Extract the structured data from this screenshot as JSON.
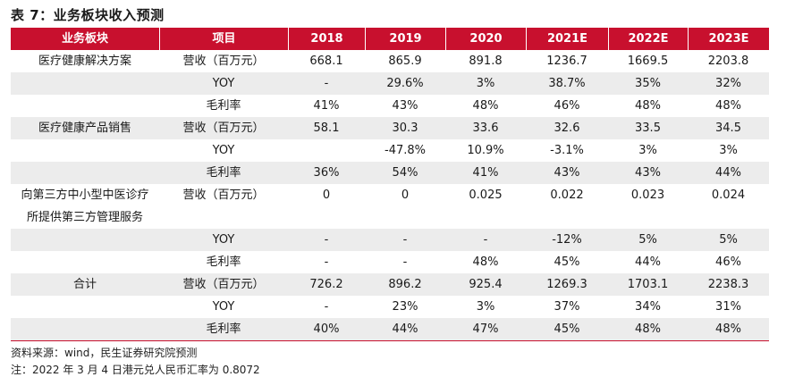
{
  "title": "表 7：业务板块收入预测",
  "header": [
    "业务板块",
    "项目",
    "2018",
    "2019",
    "2020",
    "2021E",
    "2022E",
    "2023E"
  ],
  "rows": [
    {
      "shade": false,
      "cells": [
        "医疗健康解决方案",
        "营收（百万元）",
        "668.1",
        "865.9",
        "891.8",
        "1236.7",
        "1669.5",
        "2203.8"
      ]
    },
    {
      "shade": true,
      "cells": [
        "",
        "YOY",
        "-",
        "29.6%",
        "3%",
        "38.7%",
        "35%",
        "32%"
      ]
    },
    {
      "shade": false,
      "cells": [
        "",
        "毛利率",
        "41%",
        "43%",
        "48%",
        "46%",
        "48%",
        "48%"
      ]
    },
    {
      "shade": true,
      "cells": [
        "医疗健康产品销售",
        "营收（百万元）",
        "58.1",
        "30.3",
        "33.6",
        "32.6",
        "33.5",
        "34.5"
      ]
    },
    {
      "shade": false,
      "cells": [
        "",
        "YOY",
        "",
        "-47.8%",
        "10.9%",
        "-3.1%",
        "3%",
        "3%"
      ]
    },
    {
      "shade": true,
      "cells": [
        "",
        "毛利率",
        "36%",
        "54%",
        "41%",
        "43%",
        "43%",
        "44%"
      ]
    },
    {
      "shade": false,
      "cells": [
        "向第三方中小型中医诊疗",
        "营收（百万元）",
        "0",
        "0",
        "0.025",
        "0.022",
        "0.023",
        "0.024"
      ]
    },
    {
      "shade": false,
      "cells": [
        "所提供第三方管理服务",
        "",
        "",
        "",
        "",
        "",
        "",
        ""
      ]
    },
    {
      "shade": true,
      "cells": [
        "",
        "YOY",
        "-",
        "-",
        "-",
        "-12%",
        "5%",
        "5%"
      ]
    },
    {
      "shade": false,
      "cells": [
        "",
        "毛利率",
        "-",
        "-",
        "48%",
        "45%",
        "44%",
        "46%"
      ]
    },
    {
      "shade": true,
      "cells": [
        "合计",
        "营收（百万元）",
        "726.2",
        "896.2",
        "925.4",
        "1269.3",
        "1703.1",
        "2238.3"
      ]
    },
    {
      "shade": false,
      "cells": [
        "",
        "YOY",
        "-",
        "23%",
        "3%",
        "37%",
        "34%",
        "31%"
      ]
    },
    {
      "shade": true,
      "cells": [
        "",
        "毛利率",
        "40%",
        "44%",
        "47%",
        "45%",
        "48%",
        "48%"
      ]
    }
  ],
  "source_note": "资料来源：wind，民生证券研究院预测",
  "fx_note": "注：2022 年 3 月 4 日港元兑人民币汇率为 0.8072"
}
